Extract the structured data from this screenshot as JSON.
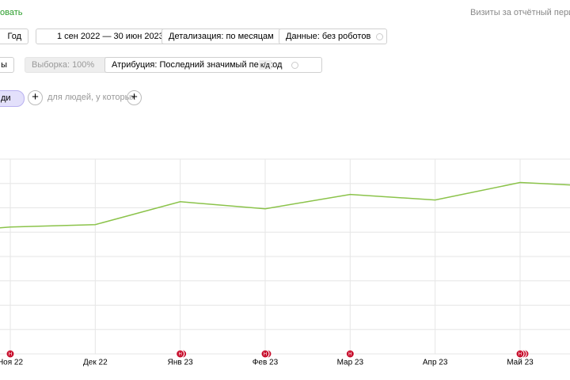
{
  "ui": {
    "top_link": "овать",
    "report_title": "Визиты за отчётный период:",
    "toolbar": {
      "period": "Год",
      "date_range": "1 сен 2022 — 30 июн 2023",
      "detail": "Детализация: по месяцам",
      "data": "Данные: без роботов"
    },
    "toolbar2": {
      "cut": "ы",
      "sample": "Выборка: 100%",
      "attribution": "Атрибуция: Последний значимый переход",
      "badge": "к/д"
    },
    "segment": {
      "chip": "ди",
      "hint": "для людей, у которых"
    },
    "marker_label": "Н"
  },
  "chart_data": {
    "type": "line",
    "categories": [
      null,
      "Ноя 22",
      "Дек 22",
      "Янв 23",
      "Фев 23",
      "Мар 23",
      "Апр 23",
      "Май 23",
      null
    ],
    "series": [
      {
        "color": "#8bc34a",
        "values": [
          4.95,
          5.21,
          5.31,
          6.25,
          5.96,
          6.55,
          6.32,
          7.04,
          6.87
        ]
      }
    ],
    "ylim": [
      0,
      8
    ],
    "yticks": [
      0,
      1,
      2,
      3,
      4,
      5,
      6,
      7,
      8
    ],
    "grid": true
  }
}
